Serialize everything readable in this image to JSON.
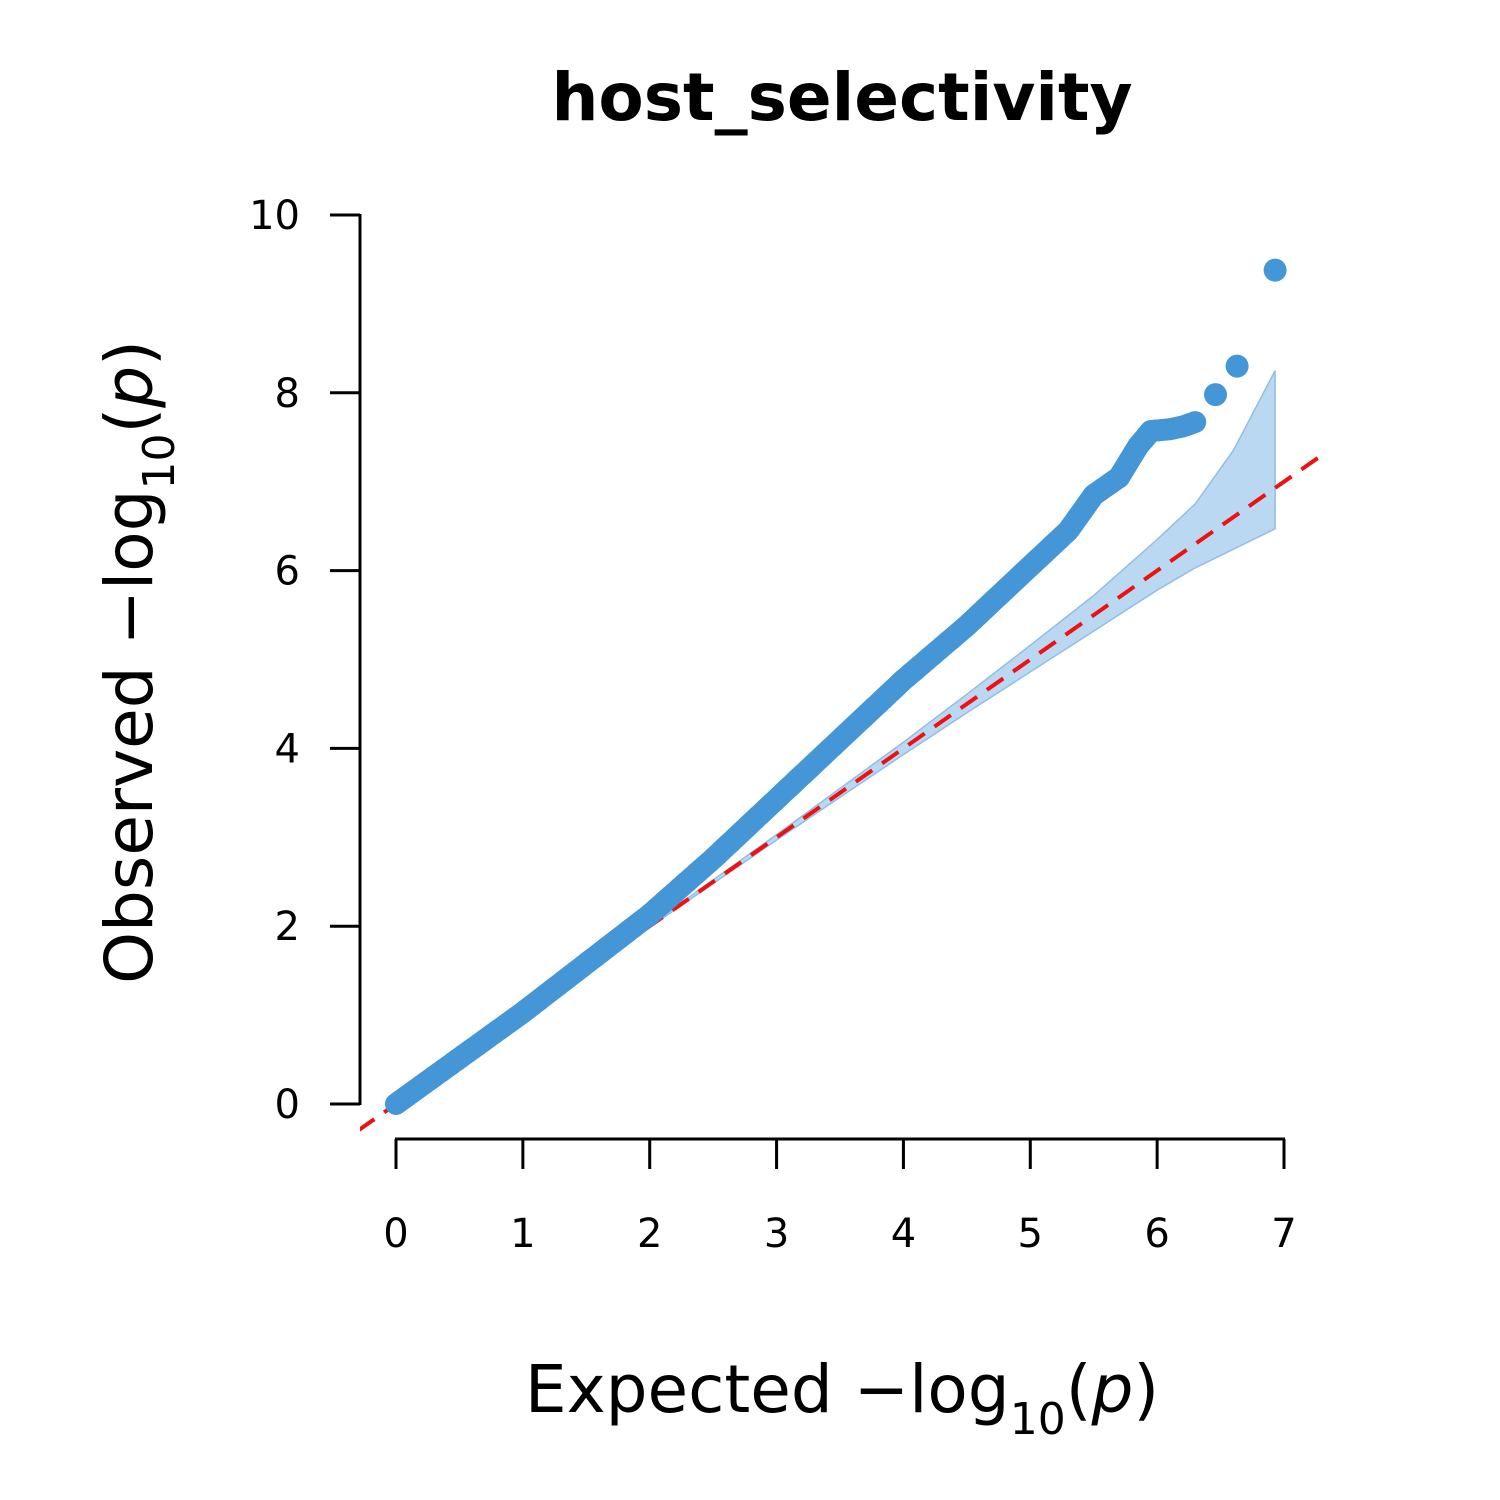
{
  "chart_data": {
    "type": "scatter",
    "title": "host_selectivity",
    "xlabel": {
      "prefix": "Expected  −log",
      "subscript": "10",
      "open": "(",
      "var": "p",
      "close": ")"
    },
    "ylabel": {
      "prefix": "Observed  −log",
      "subscript": "10",
      "open": "(",
      "var": "p",
      "close": ")"
    },
    "xlim": [
      0,
      7
    ],
    "ylim": [
      0,
      10
    ],
    "x_ticks": [
      "0",
      "1",
      "2",
      "3",
      "4",
      "5",
      "6",
      "7"
    ],
    "y_ticks": [
      "0",
      "2",
      "4",
      "6",
      "8",
      "10"
    ],
    "grid": false,
    "reference_line": {
      "slope": 1,
      "intercept": 0,
      "color": "#ee1111",
      "style": "dashed"
    },
    "point_color": "#4496d6",
    "band_color": "#b6d6f0",
    "observed_curve": [
      [
        0,
        0
      ],
      [
        1,
        1.03
      ],
      [
        2,
        2.13
      ],
      [
        2.5,
        2.76
      ],
      [
        3,
        3.43
      ],
      [
        3.5,
        4.1
      ],
      [
        4,
        4.77
      ],
      [
        4.5,
        5.38
      ],
      [
        5,
        6.05
      ],
      [
        5.3,
        6.45
      ],
      [
        5.5,
        6.85
      ],
      [
        5.7,
        7.05
      ],
      [
        5.85,
        7.4
      ],
      [
        5.95,
        7.57
      ],
      [
        6.1,
        7.59
      ],
      [
        6.2,
        7.62
      ],
      [
        6.3,
        7.67
      ]
    ],
    "top_points": [
      {
        "x": 6.46,
        "y": 7.98
      },
      {
        "x": 6.63,
        "y": 8.3
      },
      {
        "x": 6.93,
        "y": 9.38
      }
    ],
    "confidence_band": {
      "x": [
        2.0,
        3.0,
        4.0,
        4.5,
        5.0,
        5.5,
        6.0,
        6.3,
        6.6,
        6.93
      ],
      "lower": [
        1.99,
        2.97,
        3.93,
        4.4,
        4.86,
        5.32,
        5.78,
        6.03,
        6.24,
        6.47
      ],
      "upper": [
        2.01,
        3.03,
        4.07,
        4.61,
        5.16,
        5.72,
        6.35,
        6.75,
        7.35,
        8.25
      ]
    }
  }
}
